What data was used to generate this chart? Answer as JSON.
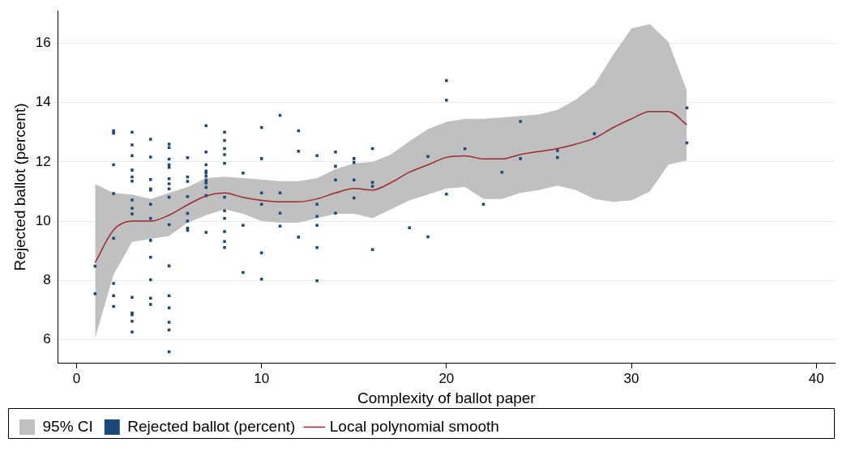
{
  "chart_data": {
    "type": "scatter",
    "xlabel": "Complexity of ballot paper",
    "ylabel": "Rejected ballot (percent)",
    "xlim": [
      -1,
      41
    ],
    "xticks": [
      0,
      10,
      20,
      30,
      40
    ],
    "ylim": [
      5.2,
      17.1
    ],
    "yticks": [
      6,
      8,
      10,
      12,
      14,
      16
    ],
    "grid": "y",
    "legend": "bottom",
    "series": [
      {
        "type": "area",
        "name": "95% CI",
        "color": "#c0c0c0",
        "x": [
          1,
          2,
          3,
          4,
          5,
          6,
          7,
          8,
          9,
          10,
          11,
          12,
          13,
          14,
          15,
          16,
          17,
          18,
          19,
          20,
          21,
          22,
          23,
          24,
          25,
          26,
          27,
          28,
          29,
          30,
          31,
          32,
          33
        ],
        "values": [
          null,
          null,
          null,
          null,
          null,
          null,
          null,
          null,
          null,
          null,
          null,
          null,
          null,
          null,
          null,
          null,
          null,
          null,
          null,
          null,
          null,
          null,
          null,
          null,
          null,
          null,
          null,
          null,
          null,
          null,
          null,
          null,
          null
        ],
        "lower": [
          6.05,
          8.2,
          9.3,
          9.4,
          9.5,
          9.95,
          10.2,
          10.4,
          10.25,
          10.0,
          9.95,
          9.95,
          10.1,
          10.25,
          10.25,
          10.1,
          10.4,
          10.7,
          10.9,
          11.1,
          11.15,
          10.75,
          10.75,
          10.95,
          11.05,
          11.2,
          11.05,
          10.75,
          10.65,
          10.7,
          11.0,
          11.9,
          12.05
        ],
        "upper": [
          11.25,
          10.95,
          10.9,
          10.75,
          10.95,
          11.15,
          11.45,
          11.5,
          11.45,
          11.4,
          11.35,
          11.35,
          11.45,
          11.75,
          11.95,
          12.0,
          12.25,
          12.7,
          13.1,
          13.35,
          13.45,
          13.45,
          13.5,
          13.55,
          13.6,
          13.75,
          14.1,
          14.6,
          15.6,
          16.5,
          16.65,
          16.05,
          14.4
        ]
      },
      {
        "type": "scatter",
        "name": "Rejected ballot (percent)",
        "color": "#1a4a7a",
        "marker": "square",
        "x": [
          1,
          1,
          2,
          2,
          2,
          2,
          2,
          2,
          2,
          2,
          3,
          3,
          3,
          3,
          3,
          3,
          3,
          3,
          3,
          3,
          3,
          3,
          3,
          3,
          4,
          4,
          4,
          4,
          4,
          4,
          4,
          4,
          4,
          4,
          4,
          4,
          5,
          5,
          5,
          5,
          5,
          5,
          5,
          5,
          5,
          5,
          5,
          5,
          5,
          5,
          5,
          5,
          6,
          6,
          6,
          6,
          6,
          6,
          6,
          6,
          7,
          7,
          7,
          7,
          7,
          7,
          7,
          7,
          7,
          7,
          7,
          8,
          8,
          8,
          8,
          8,
          8,
          8,
          8,
          8,
          8,
          8,
          9,
          9,
          9,
          10,
          10,
          10,
          10,
          10,
          10,
          11,
          11,
          11,
          11,
          12,
          12,
          12,
          13,
          13,
          13,
          13,
          13,
          13,
          14,
          14,
          14,
          14,
          15,
          15,
          15,
          15,
          16,
          16,
          16,
          16,
          18,
          19,
          19,
          20,
          20,
          20,
          21,
          22,
          23,
          24,
          24,
          26,
          26,
          28,
          33,
          33
        ],
        "values": [
          8.48,
          7.55,
          13.05,
          12.97,
          11.9,
          10.93,
          9.42,
          7.9,
          7.48,
          7.12,
          13.0,
          12.57,
          12.21,
          11.72,
          11.49,
          11.35,
          10.71,
          10.43,
          10.24,
          7.43,
          6.9,
          6.84,
          6.62,
          6.26,
          12.76,
          12.16,
          11.4,
          11.09,
          11.05,
          10.57,
          10.09,
          9.35,
          8.78,
          8.02,
          7.4,
          7.19,
          12.6,
          12.48,
          12.09,
          11.9,
          11.81,
          11.43,
          11.26,
          11.09,
          10.81,
          9.88,
          8.49,
          7.48,
          7.07,
          6.59,
          6.33,
          5.59,
          12.14,
          11.49,
          11.34,
          10.83,
          10.26,
          10.0,
          9.76,
          9.69,
          13.22,
          12.33,
          11.9,
          11.69,
          11.62,
          11.51,
          11.38,
          11.29,
          11.14,
          10.86,
          9.62,
          13.0,
          12.72,
          12.45,
          12.24,
          11.95,
          10.81,
          10.35,
          10.09,
          9.65,
          9.31,
          9.11,
          11.62,
          9.86,
          8.27,
          13.16,
          12.11,
          10.95,
          10.57,
          8.93,
          8.04,
          13.57,
          10.95,
          10.27,
          9.83,
          13.05,
          12.36,
          9.46,
          12.21,
          10.57,
          10.16,
          9.86,
          9.11,
          7.99,
          12.33,
          11.85,
          11.39,
          10.27,
          12.11,
          11.98,
          11.39,
          10.78,
          12.45,
          11.31,
          11.18,
          9.04,
          9.78,
          12.18,
          9.47,
          14.74,
          14.08,
          10.91,
          12.44,
          10.57,
          11.65,
          13.36,
          12.11,
          12.38,
          12.15,
          12.95,
          13.82,
          12.64
        ]
      },
      {
        "type": "line",
        "name": "Local polynomial smooth",
        "color": "#a0282e",
        "marker": "none",
        "x": [
          1,
          2,
          3,
          4,
          5,
          6,
          7,
          8,
          9,
          10,
          11,
          12,
          13,
          14,
          15,
          16,
          17,
          18,
          19,
          20,
          21,
          22,
          23,
          24,
          25,
          26,
          27,
          28,
          29,
          30,
          31,
          32,
          33
        ],
        "values": [
          8.6,
          9.7,
          10.0,
          10.0,
          10.2,
          10.55,
          10.85,
          10.95,
          10.8,
          10.7,
          10.65,
          10.65,
          10.75,
          10.95,
          11.1,
          11.05,
          11.3,
          11.65,
          11.9,
          12.15,
          12.2,
          12.1,
          12.1,
          12.25,
          12.35,
          12.45,
          12.6,
          12.8,
          13.15,
          13.45,
          13.7,
          13.7,
          13.25
        ]
      }
    ]
  }
}
